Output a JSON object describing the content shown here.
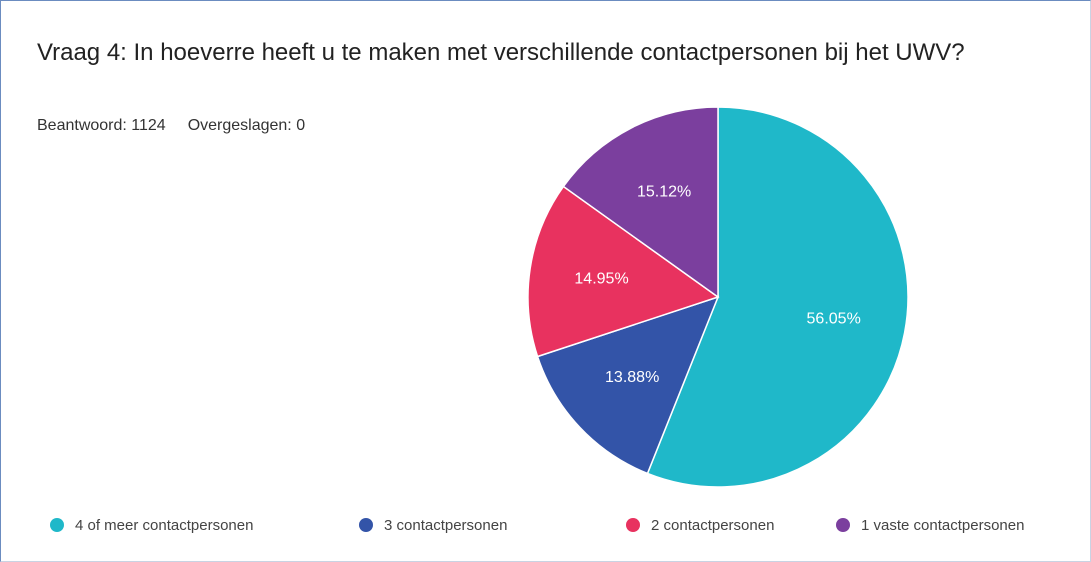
{
  "chart_data": {
    "type": "pie",
    "title": "Vraag 4: In hoeverre heeft u te maken met verschillende contactpersonen bij het UWV?",
    "answered": "Beantwoord: 1124",
    "skipped": "Overgeslagen: 0",
    "categories": [
      "4 of meer contactpersonen",
      "3 contactpersonen",
      "2 contactpersonen",
      "1 vaste contactpersonen"
    ],
    "values": [
      56.05,
      13.88,
      14.95,
      15.12
    ],
    "value_labels": [
      "56.05%",
      "13.88%",
      "14.95%",
      "15.12%"
    ],
    "colors": [
      "#1fb8c9",
      "#3354a8",
      "#e8325f",
      "#7b3f9e"
    ]
  }
}
